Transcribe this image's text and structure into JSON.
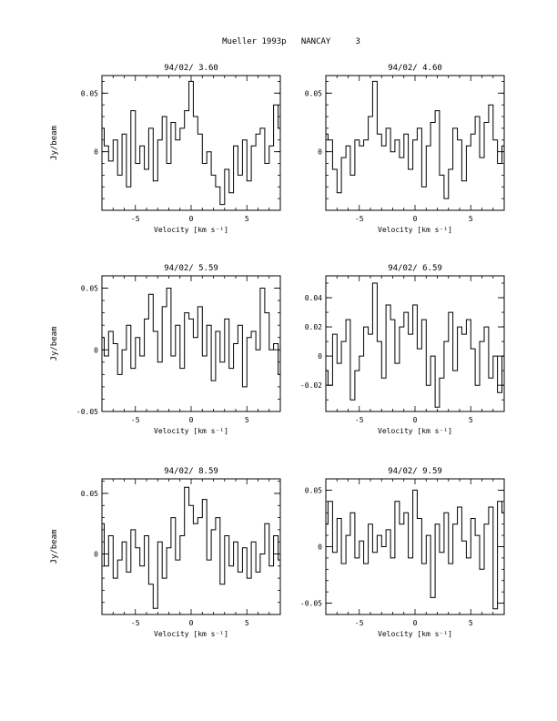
{
  "header": {
    "title": "Mueller 1993p   NANCAY     3"
  },
  "chart_data": [
    {
      "type": "line",
      "title": "94/02/ 3.60",
      "xlabel": "Velocity [km s⁻¹]",
      "ylabel": "Jy/beam",
      "xlim": [
        -8,
        8
      ],
      "ylim": [
        -0.05,
        0.065
      ],
      "xticks": [
        -5,
        0,
        5
      ],
      "xtick_labels": [
        "-5",
        "0",
        "5"
      ],
      "yticks": [
        0,
        0.05
      ],
      "ytick_labels": [
        "0",
        "0.05"
      ],
      "x": [
        -8,
        -7.6,
        -7.2,
        -6.8,
        -6.4,
        -6,
        -5.6,
        -5.2,
        -4.8,
        -4.4,
        -4,
        -3.6,
        -3.2,
        -2.8,
        -2.4,
        -2,
        -1.6,
        -1.2,
        -0.8,
        -0.4,
        0,
        0.4,
        0.8,
        1.2,
        1.6,
        2,
        2.4,
        2.8,
        3.2,
        3.6,
        4,
        4.4,
        4.8,
        5.2,
        5.6,
        6,
        6.4,
        6.8,
        7.2,
        7.6,
        8
      ],
      "values": [
        0.02,
        0.005,
        -0.008,
        0.01,
        -0.02,
        0.015,
        -0.03,
        0.035,
        -0.01,
        0.005,
        -0.015,
        0.02,
        -0.025,
        0.01,
        0.03,
        -0.01,
        0.025,
        0.01,
        0.02,
        0.035,
        0.06,
        0.03,
        0.015,
        -0.01,
        0.0,
        -0.02,
        -0.03,
        -0.045,
        -0.015,
        -0.035,
        0.005,
        -0.02,
        0.01,
        -0.025,
        0.005,
        0.015,
        0.02,
        -0.01,
        0.005,
        0.04,
        0.02
      ]
    },
    {
      "type": "line",
      "title": "94/02/ 4.60",
      "xlabel": "Velocity [km s⁻¹]",
      "ylabel": "",
      "xlim": [
        -8,
        8
      ],
      "ylim": [
        -0.05,
        0.065
      ],
      "xticks": [
        -5,
        0,
        5
      ],
      "xtick_labels": [
        "-5",
        "0",
        "5"
      ],
      "yticks": [
        0,
        0.05
      ],
      "ytick_labels": [
        "0",
        "0.05"
      ],
      "x": [
        -8,
        -7.6,
        -7.2,
        -6.8,
        -6.4,
        -6,
        -5.6,
        -5.2,
        -4.8,
        -4.4,
        -4,
        -3.6,
        -3.2,
        -2.8,
        -2.4,
        -2,
        -1.6,
        -1.2,
        -0.8,
        -0.4,
        0,
        0.4,
        0.8,
        1.2,
        1.6,
        2,
        2.4,
        2.8,
        3.2,
        3.6,
        4,
        4.4,
        4.8,
        5.2,
        5.6,
        6,
        6.4,
        6.8,
        7.2,
        7.6,
        8
      ],
      "values": [
        0.015,
        0.01,
        -0.015,
        -0.035,
        -0.005,
        0.005,
        -0.02,
        0.01,
        0.005,
        0.01,
        0.03,
        0.06,
        0.015,
        0.005,
        0.02,
        0.0,
        0.01,
        -0.005,
        0.015,
        -0.015,
        0.01,
        0.02,
        -0.03,
        0.005,
        0.025,
        0.035,
        -0.02,
        -0.04,
        -0.015,
        0.02,
        0.01,
        -0.025,
        0.005,
        0.015,
        0.03,
        -0.005,
        0.025,
        0.04,
        0.01,
        -0.01,
        0.005
      ]
    },
    {
      "type": "line",
      "title": "94/02/ 5.59",
      "xlabel": "Velocity [km s⁻¹]",
      "ylabel": "Jy/beam",
      "xlim": [
        -8,
        8
      ],
      "ylim": [
        -0.05,
        0.06
      ],
      "xticks": [
        -5,
        0,
        5
      ],
      "xtick_labels": [
        "-5",
        "0",
        "5"
      ],
      "yticks": [
        -0.05,
        0,
        0.05
      ],
      "ytick_labels": [
        "-0.05",
        "0",
        "0.05"
      ],
      "x": [
        -8,
        -7.6,
        -7.2,
        -6.8,
        -6.4,
        -6,
        -5.6,
        -5.2,
        -4.8,
        -4.4,
        -4,
        -3.6,
        -3.2,
        -2.8,
        -2.4,
        -2,
        -1.6,
        -1.2,
        -0.8,
        -0.4,
        0,
        0.4,
        0.8,
        1.2,
        1.6,
        2,
        2.4,
        2.8,
        3.2,
        3.6,
        4,
        4.4,
        4.8,
        5.2,
        5.6,
        6,
        6.4,
        6.8,
        7.2,
        7.6,
        8
      ],
      "values": [
        0.01,
        -0.005,
        0.015,
        0.005,
        -0.02,
        0.0,
        0.02,
        -0.015,
        0.01,
        -0.005,
        0.025,
        0.045,
        0.015,
        -0.01,
        0.035,
        0.05,
        -0.005,
        0.02,
        -0.015,
        0.03,
        0.025,
        0.01,
        0.035,
        -0.005,
        0.02,
        -0.025,
        0.015,
        -0.01,
        0.025,
        -0.015,
        0.005,
        0.02,
        -0.03,
        0.01,
        0.015,
        0.0,
        0.05,
        0.03,
        0.0,
        0.005,
        -0.02
      ]
    },
    {
      "type": "line",
      "title": "94/02/ 6.59",
      "xlabel": "Velocity [km s⁻¹]",
      "ylabel": "",
      "xlim": [
        -8,
        8
      ],
      "ylim": [
        -0.038,
        0.055
      ],
      "xticks": [
        -5,
        0,
        5
      ],
      "xtick_labels": [
        "-5",
        "0",
        "5"
      ],
      "yticks": [
        -0.02,
        0,
        0.02,
        0.04
      ],
      "ytick_labels": [
        "-0.02",
        "0",
        "0.02",
        "0.04"
      ],
      "x": [
        -8,
        -7.6,
        -7.2,
        -6.8,
        -6.4,
        -6,
        -5.6,
        -5.2,
        -4.8,
        -4.4,
        -4,
        -3.6,
        -3.2,
        -2.8,
        -2.4,
        -2,
        -1.6,
        -1.2,
        -0.8,
        -0.4,
        0,
        0.4,
        0.8,
        1.2,
        1.6,
        2,
        2.4,
        2.8,
        3.2,
        3.6,
        4,
        4.4,
        4.8,
        5.2,
        5.6,
        6,
        6.4,
        6.8,
        7.2,
        7.6,
        8
      ],
      "values": [
        -0.01,
        -0.02,
        0.015,
        -0.005,
        0.01,
        0.025,
        -0.03,
        -0.01,
        0.0,
        0.02,
        0.015,
        0.05,
        0.01,
        -0.015,
        0.035,
        0.025,
        -0.005,
        0.02,
        0.03,
        0.015,
        0.035,
        0.005,
        0.025,
        -0.02,
        0.0,
        -0.035,
        -0.015,
        0.01,
        0.03,
        -0.01,
        0.02,
        0.015,
        0.025,
        0.005,
        -0.02,
        0.01,
        0.02,
        -0.015,
        0.0,
        -0.025,
        0.0
      ]
    },
    {
      "type": "line",
      "title": "94/02/ 8.59",
      "xlabel": "Velocity [km s⁻¹]",
      "ylabel": "Jy/beam",
      "xlim": [
        -8,
        8
      ],
      "ylim": [
        -0.05,
        0.062
      ],
      "xticks": [
        -5,
        0,
        5
      ],
      "xtick_labels": [
        "-5",
        "0",
        "5"
      ],
      "yticks": [
        0,
        0.05
      ],
      "ytick_labels": [
        "0",
        "0.05"
      ],
      "x": [
        -8,
        -7.6,
        -7.2,
        -6.8,
        -6.4,
        -6,
        -5.6,
        -5.2,
        -4.8,
        -4.4,
        -4,
        -3.6,
        -3.2,
        -2.8,
        -2.4,
        -2,
        -1.6,
        -1.2,
        -0.8,
        -0.4,
        0,
        0.4,
        0.8,
        1.2,
        1.6,
        2,
        2.4,
        2.8,
        3.2,
        3.6,
        4,
        4.4,
        4.8,
        5.2,
        5.6,
        6,
        6.4,
        6.8,
        7.2,
        7.6,
        8
      ],
      "values": [
        0.025,
        -0.01,
        0.015,
        -0.02,
        -0.005,
        0.01,
        -0.015,
        0.02,
        0.005,
        -0.01,
        0.015,
        -0.025,
        -0.045,
        0.01,
        -0.02,
        0.005,
        0.03,
        -0.005,
        0.015,
        0.055,
        0.04,
        0.025,
        0.03,
        0.045,
        -0.005,
        0.02,
        0.03,
        -0.025,
        0.015,
        -0.01,
        0.01,
        -0.015,
        0.005,
        -0.02,
        0.01,
        -0.015,
        0.0,
        0.025,
        -0.01,
        0.015,
        -0.005
      ]
    },
    {
      "type": "line",
      "title": "94/02/ 9.59",
      "xlabel": "Velocity [km s⁻¹]",
      "ylabel": "",
      "xlim": [
        -8,
        8
      ],
      "ylim": [
        -0.06,
        0.06
      ],
      "xticks": [
        -5,
        0,
        5
      ],
      "xtick_labels": [
        "-5",
        "0",
        "5"
      ],
      "yticks": [
        -0.05,
        0,
        0.05
      ],
      "ytick_labels": [
        "-0.05",
        "0",
        "0.05"
      ],
      "x": [
        -8,
        -7.6,
        -7.2,
        -6.8,
        -6.4,
        -6,
        -5.6,
        -5.2,
        -4.8,
        -4.4,
        -4,
        -3.6,
        -3.2,
        -2.8,
        -2.4,
        -2,
        -1.6,
        -1.2,
        -0.8,
        -0.4,
        0,
        0.4,
        0.8,
        1.2,
        1.6,
        2,
        2.4,
        2.8,
        3.2,
        3.6,
        4,
        4.4,
        4.8,
        5.2,
        5.6,
        6,
        6.4,
        6.8,
        7.2,
        7.6,
        8
      ],
      "values": [
        0.02,
        0.04,
        -0.005,
        0.025,
        -0.015,
        0.01,
        0.03,
        -0.01,
        0.005,
        -0.015,
        0.02,
        -0.005,
        0.01,
        0.0,
        0.015,
        -0.01,
        0.04,
        0.02,
        0.03,
        -0.01,
        0.05,
        0.025,
        -0.015,
        0.01,
        -0.045,
        0.02,
        -0.005,
        0.03,
        -0.015,
        0.02,
        0.035,
        0.005,
        -0.01,
        0.025,
        0.01,
        -0.02,
        0.02,
        0.035,
        -0.055,
        0.04,
        0.03
      ]
    }
  ]
}
